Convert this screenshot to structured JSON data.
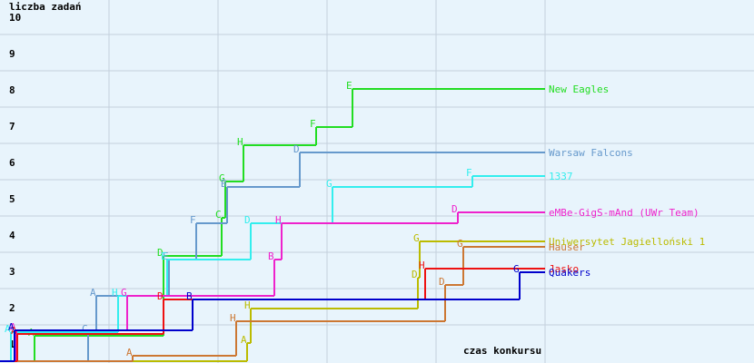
{
  "chart_data": {
    "type": "step",
    "y_axis_label": "liczba zadań",
    "x_axis_label": "czas konkursu",
    "xlim": [
      0,
      300
    ],
    "ylim": [
      0,
      10
    ],
    "xticks": [
      60,
      120,
      180,
      240,
      300
    ],
    "yticks": [
      1,
      2,
      3,
      4,
      5,
      6,
      7,
      8,
      9,
      10
    ],
    "grid": true,
    "series": [
      {
        "name": "New Eagles",
        "color": "#22dd22",
        "x": [
          0,
          19,
          90,
          122,
          124,
          134,
          174,
          194
        ],
        "values": [
          0,
          0.7,
          2.9,
          3.95,
          4.95,
          5.95,
          6.45,
          7.5
        ],
        "problems": [
          null,
          "A",
          "D",
          "C",
          "G",
          "H",
          "F",
          "E"
        ]
      },
      {
        "name": "Warsaw Falcons",
        "color": "#6699cc",
        "x": [
          0,
          48.5,
          53,
          93,
          108,
          125,
          165
        ],
        "values": [
          0,
          0.8,
          1.8,
          2.8,
          3.8,
          4.8,
          5.75
        ],
        "problems": [
          null,
          "C",
          "A",
          "E",
          "F",
          "B",
          "D"
        ]
      },
      {
        "name": "1337",
        "color": "#33eeee",
        "x": [
          0,
          6,
          65,
          92,
          138,
          183,
          260
        ],
        "values": [
          0,
          0.8,
          1.8,
          2.8,
          3.8,
          4.8,
          5.1
        ],
        "problems": [
          null,
          "A",
          "H",
          "E",
          "D",
          "G",
          "F"
        ]
      },
      {
        "name": "eMBe-GigS-mAnd (UWr Team)",
        "color": "#ee22cc",
        "x": [
          0,
          9,
          70,
          151,
          155,
          252
        ],
        "values": [
          0,
          0.85,
          1.8,
          2.8,
          3.8,
          4.1
        ],
        "problems": [
          null,
          "A",
          "G",
          "B",
          "H",
          "D"
        ]
      },
      {
        "name": "Uniwersytet Jagielloński 1",
        "color": "#bbbb00",
        "x": [
          0,
          136,
          138,
          230,
          231
        ],
        "values": [
          0,
          0.5,
          1.45,
          2.3,
          3.3
        ],
        "problems": [
          null,
          "A",
          "H",
          "D",
          "G"
        ]
      },
      {
        "name": "Hauser",
        "color": "#cc7733",
        "x": [
          0,
          73,
          130,
          245,
          255
        ],
        "values": [
          0,
          0.15,
          1.1,
          2.1,
          3.15
        ],
        "problems": [
          null,
          "A",
          "H",
          "D",
          "G"
        ]
      },
      {
        "name": "Jasko",
        "color": "#ee1111",
        "x": [
          0,
          9.5,
          90,
          234
        ],
        "values": [
          0,
          0.75,
          1.7,
          2.55
        ],
        "problems": [
          null,
          "A",
          "D",
          "H"
        ]
      },
      {
        "name": "Quakers",
        "color": "#0000cc",
        "x": [
          0,
          8,
          106,
          286
        ],
        "values": [
          0,
          0.85,
          1.7,
          2.45
        ],
        "problems": [
          null,
          "A",
          "B",
          "G"
        ]
      }
    ]
  }
}
